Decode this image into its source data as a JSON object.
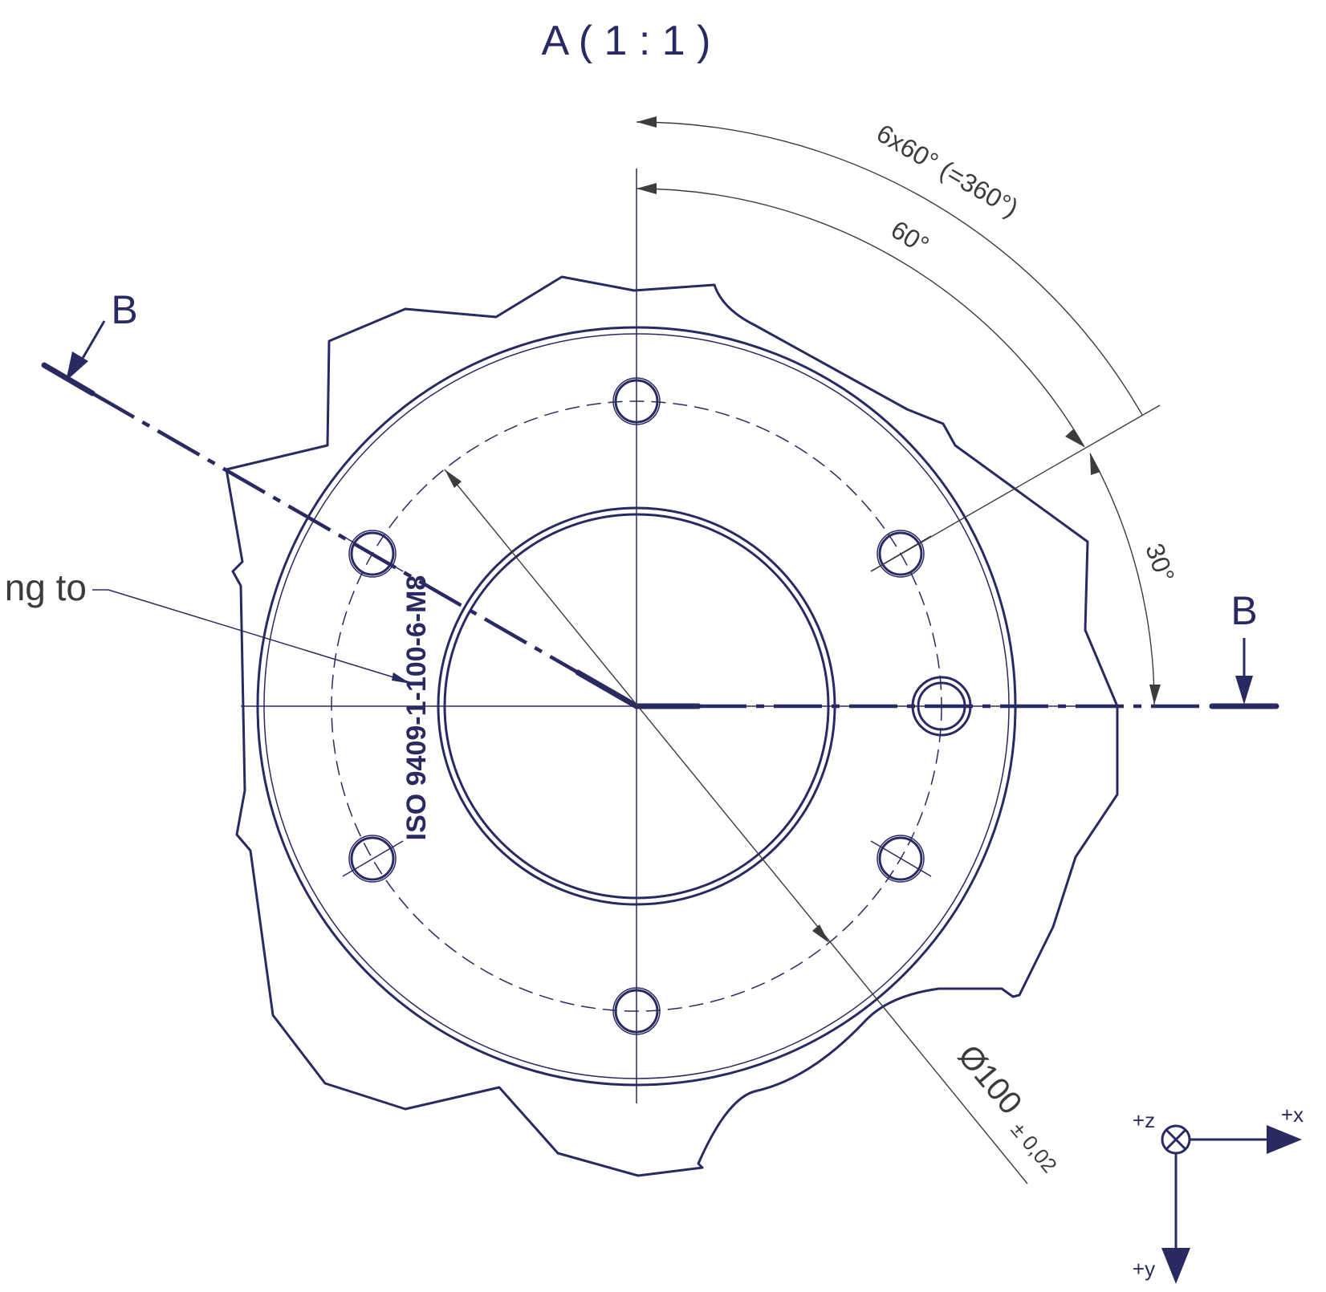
{
  "view_title": "A ( 1 : 1 )",
  "section_label_left": "B",
  "section_label_right": "B",
  "dimensions": {
    "pattern_angle": "6x60° (=360°)",
    "pitch_angle": "60°",
    "offset_angle": "30°",
    "bolt_circle_diameter": "Ø100",
    "bolt_circle_tolerance": "± 0,02"
  },
  "leader_note": "ng to",
  "flange_marking": "ISO 9409-1-100-6-M8",
  "axes": {
    "x_label": "+x",
    "y_label": "+y",
    "z_label": "+z"
  },
  "colors": {
    "line": "#2a2a62",
    "dimension": "#3c3c3c"
  }
}
